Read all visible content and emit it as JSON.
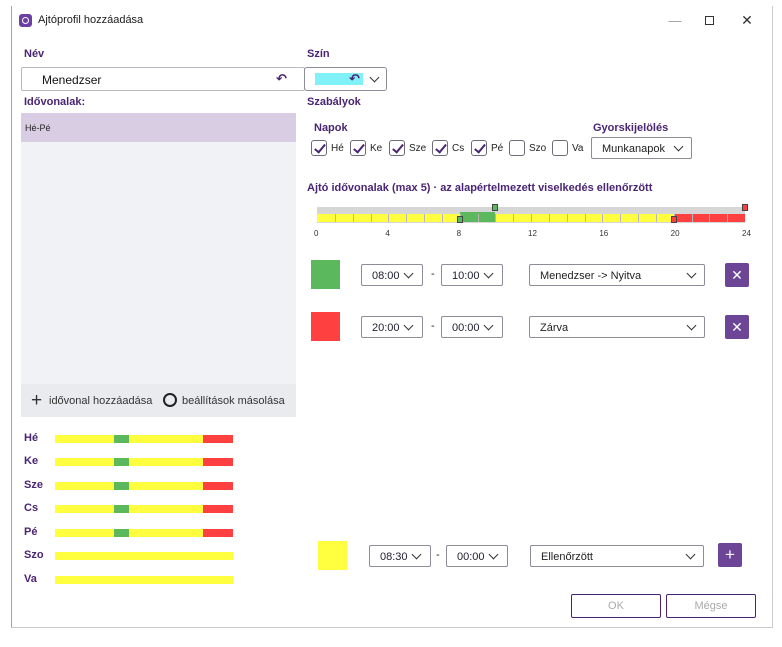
{
  "window": {
    "title": "Ajtóprofil hozzáadása",
    "min_glyph": "—",
    "close_glyph": "✕"
  },
  "labels": {
    "name": "Név",
    "color": "Szín",
    "timeslots": "Idővonalak:",
    "rules": "Szabályok",
    "days": "Napok",
    "quick_select": "Gyorskijelölés",
    "timeline_title": "Ajtó idővonalak (max 5) · az alapértelmezett viselkedés ellenőrzött"
  },
  "name_value": "Menedzser",
  "color_value": "#80f2f7",
  "icons": {
    "undo": "undo-icon",
    "plus": "plus-icon",
    "copy": "copy-icon",
    "remove": "x-icon",
    "window": "app-icon"
  },
  "timeslot_list": [
    "Hé-Pé"
  ],
  "list_actions": {
    "add": "idővonal hozzáadása",
    "copy": "beállítások másolása"
  },
  "day_summary": [
    {
      "label": "Hé",
      "segments": [
        {
          "from": 0,
          "to": 8,
          "color": "#ffff40"
        },
        {
          "from": 8,
          "to": 10,
          "color": "#5cb85c"
        },
        {
          "from": 10,
          "to": 20,
          "color": "#ffff40"
        },
        {
          "from": 20,
          "to": 24,
          "color": "#ff4040"
        }
      ]
    },
    {
      "label": "Ke",
      "segments": [
        {
          "from": 0,
          "to": 8,
          "color": "#ffff40"
        },
        {
          "from": 8,
          "to": 10,
          "color": "#5cb85c"
        },
        {
          "from": 10,
          "to": 20,
          "color": "#ffff40"
        },
        {
          "from": 20,
          "to": 24,
          "color": "#ff4040"
        }
      ]
    },
    {
      "label": "Sze",
      "segments": [
        {
          "from": 0,
          "to": 8,
          "color": "#ffff40"
        },
        {
          "from": 8,
          "to": 10,
          "color": "#5cb85c"
        },
        {
          "from": 10,
          "to": 20,
          "color": "#ffff40"
        },
        {
          "from": 20,
          "to": 24,
          "color": "#ff4040"
        }
      ]
    },
    {
      "label": "Cs",
      "segments": [
        {
          "from": 0,
          "to": 8,
          "color": "#ffff40"
        },
        {
          "from": 8,
          "to": 10,
          "color": "#5cb85c"
        },
        {
          "from": 10,
          "to": 20,
          "color": "#ffff40"
        },
        {
          "from": 20,
          "to": 24,
          "color": "#ff4040"
        }
      ]
    },
    {
      "label": "Pé",
      "segments": [
        {
          "from": 0,
          "to": 8,
          "color": "#ffff40"
        },
        {
          "from": 8,
          "to": 10,
          "color": "#5cb85c"
        },
        {
          "from": 10,
          "to": 20,
          "color": "#ffff40"
        },
        {
          "from": 20,
          "to": 24,
          "color": "#ff4040"
        }
      ]
    },
    {
      "label": "Szo",
      "segments": [
        {
          "from": 0,
          "to": 24,
          "color": "#ffff40"
        }
      ]
    },
    {
      "label": "Va",
      "segments": [
        {
          "from": 0,
          "to": 24,
          "color": "#ffff40"
        }
      ]
    }
  ],
  "days": [
    {
      "label": "Hé",
      "checked": true
    },
    {
      "label": "Ke",
      "checked": true
    },
    {
      "label": "Sze",
      "checked": true
    },
    {
      "label": "Cs",
      "checked": true
    },
    {
      "label": "Pé",
      "checked": true
    },
    {
      "label": "Szo",
      "checked": false
    },
    {
      "label": "Va",
      "checked": false
    }
  ],
  "quick_select_value": "Munkanapok",
  "timeline": {
    "ticks": [
      "0",
      "4",
      "8",
      "12",
      "16",
      "20",
      "24"
    ],
    "segments": [
      {
        "from": 0,
        "to": 8,
        "color": "#ffff40"
      },
      {
        "from": 8,
        "to": 10,
        "color": "#5cb85c"
      },
      {
        "from": 10,
        "to": 20,
        "color": "#ffff40"
      },
      {
        "from": 20,
        "to": 24,
        "color": "#ff4040"
      }
    ]
  },
  "rules": [
    {
      "color": "#5cb85c",
      "start": "08:00",
      "end": "10:00",
      "action": "Menedzser -> Nyitva"
    },
    {
      "color": "#ff4040",
      "start": "20:00",
      "end": "00:00",
      "action": "Zárva"
    }
  ],
  "new_rule": {
    "color": "#ffff40",
    "start": "08:30",
    "end": "00:00",
    "action": "Ellenőrzött"
  },
  "buttons": {
    "ok": "OK",
    "cancel": "Mégse"
  }
}
